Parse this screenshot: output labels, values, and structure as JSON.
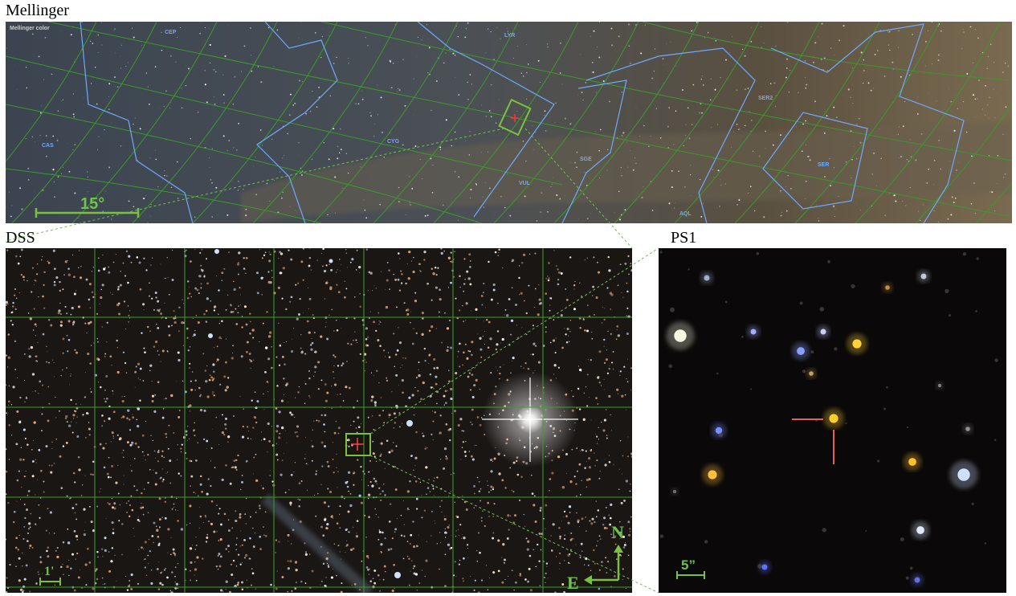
{
  "panels": {
    "mellinger": {
      "title": "Mellinger",
      "caption": "Mellinger color",
      "scale": "15°",
      "labels": [
        "CEP",
        "LYR",
        "CAS",
        "CYG",
        "SGE",
        "VUL",
        "SER2",
        "SER",
        "AQL"
      ]
    },
    "dss": {
      "title": "DSS",
      "scale": "1'",
      "north": "N",
      "east": "E"
    },
    "ps1": {
      "title": "PS1",
      "scale": "5”"
    }
  }
}
